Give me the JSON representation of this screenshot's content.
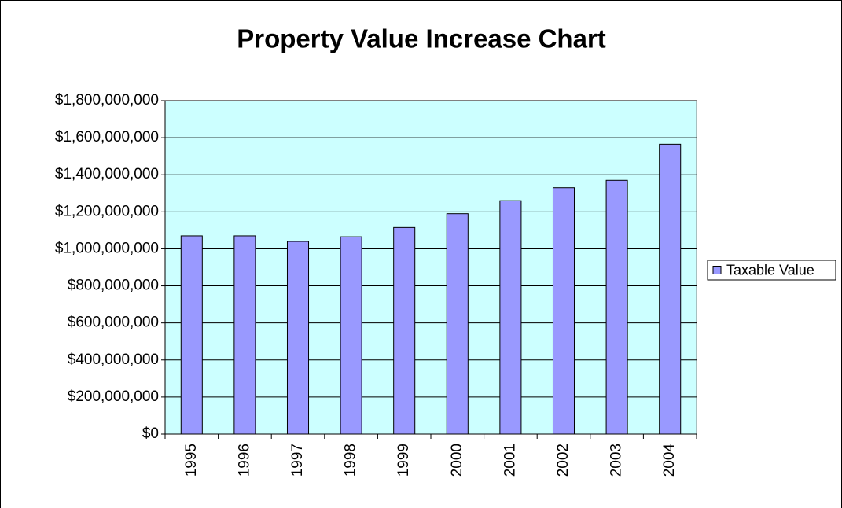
{
  "chart_data": {
    "type": "bar",
    "title": "Property Value Increase Chart",
    "categories": [
      "1995",
      "1996",
      "1997",
      "1998",
      "1999",
      "2000",
      "2001",
      "2002",
      "2003",
      "2004"
    ],
    "series": [
      {
        "name": "Taxable Value",
        "color": "#9999ff",
        "values": [
          1070000000,
          1070000000,
          1040000000,
          1065000000,
          1115000000,
          1190000000,
          1260000000,
          1330000000,
          1370000000,
          1565000000
        ]
      }
    ],
    "ylim": [
      0,
      1800000000
    ],
    "yticks": [
      {
        "value": 0,
        "label": "$0"
      },
      {
        "value": 200000000,
        "label": "$200,000,000"
      },
      {
        "value": 400000000,
        "label": "$400,000,000"
      },
      {
        "value": 600000000,
        "label": "$600,000,000"
      },
      {
        "value": 800000000,
        "label": "$800,000,000"
      },
      {
        "value": 1000000000,
        "label": "$1,000,000,000"
      },
      {
        "value": 1200000000,
        "label": "$1,200,000,000"
      },
      {
        "value": 1400000000,
        "label": "$1,400,000,000"
      },
      {
        "value": 1600000000,
        "label": "$1,600,000,000"
      },
      {
        "value": 1800000000,
        "label": "$1,800,000,000"
      }
    ],
    "grid": true,
    "plot_background": "#ccffff",
    "legend": "right"
  }
}
